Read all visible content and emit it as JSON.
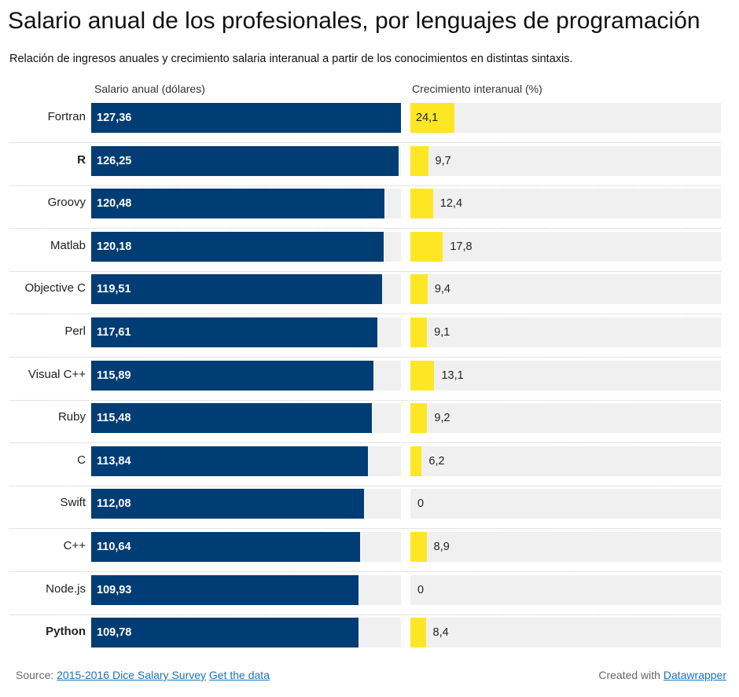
{
  "header": {
    "title": "Salario anual de los profesionales, por lenguajes de programación",
    "subtitle": "Relación de ingresos anuales y crecimiento salaria interanual a partir de los conocimientos en distintas sintaxis."
  },
  "footer": {
    "source_prefix": "Source:",
    "source_link": "2015-2016 Dice Salary Survey",
    "data_link": "Get the data",
    "created_prefix": "Created with",
    "created_link": "Datawrapper"
  },
  "colors": {
    "salary_bar": "#003d74",
    "growth_bar": "#fde725",
    "track": "#f0f0f0"
  },
  "chart_data": {
    "type": "bar",
    "orientation": "horizontal",
    "categories": [
      "Fortran",
      "R",
      "Groovy",
      "Matlab",
      "Objective C",
      "Perl",
      "Visual C++",
      "Ruby",
      "C",
      "Swift",
      "C++",
      "Node.js",
      "Python"
    ],
    "bold_categories": [
      "R",
      "Python"
    ],
    "series": [
      {
        "name": "Salario anual (dólares)",
        "values": [
          127.36,
          126.25,
          120.48,
          120.18,
          119.51,
          117.61,
          115.89,
          115.48,
          113.84,
          112.08,
          110.64,
          109.93,
          109.78
        ],
        "labels": [
          "127,36",
          "126,25",
          "120,48",
          "120,18",
          "119,51",
          "117,61",
          "115,89",
          "115,48",
          "113,84",
          "112,08",
          "110,64",
          "109,93",
          "109,78"
        ],
        "xlim": [
          0,
          127.36
        ]
      },
      {
        "name": "Crecimiento interanual (%)",
        "values": [
          24.1,
          9.7,
          12.4,
          17.8,
          9.4,
          9.1,
          13.1,
          9.2,
          6.2,
          0,
          8.9,
          0,
          8.4
        ],
        "labels": [
          "24,1",
          "9,7",
          "12,4",
          "17,8",
          "9,4",
          "9,1",
          "13,1",
          "9,2",
          "6,2",
          "0",
          "8,9",
          "0",
          "8,4"
        ],
        "xlim": [
          0,
          170
        ]
      }
    ]
  }
}
